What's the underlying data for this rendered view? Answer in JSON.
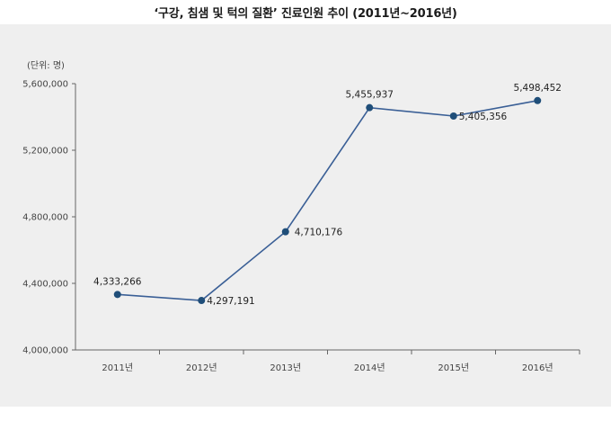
{
  "chart_data": {
    "type": "line",
    "title": "‘구강, 침샘 및 턱의 질환’ 진료인원 추이 (2011년~2016년)",
    "unit_label": "(단위: 명)",
    "categories": [
      "2011년",
      "2012년",
      "2013년",
      "2014년",
      "2015년",
      "2016년"
    ],
    "series": [
      {
        "values": [
          4333266,
          4297191,
          4710176,
          5455937,
          5405356,
          5498452
        ]
      }
    ],
    "data_labels": [
      "4,333,266",
      "4,297,191",
      "4,710,176",
      "5,455,937",
      "5,405,356",
      "5,498,452"
    ],
    "ylim": [
      4000000,
      5600000
    ],
    "y_ticks": [
      4000000,
      4400000,
      4800000,
      5200000,
      5600000
    ],
    "y_tick_labels": [
      "4,000,000",
      "4,400,000",
      "4,800,000",
      "5,200,000",
      "5,600,000"
    ],
    "line_color": "#3a5f96",
    "marker_color": "#1f4e79",
    "grid": false,
    "legend": "none"
  }
}
